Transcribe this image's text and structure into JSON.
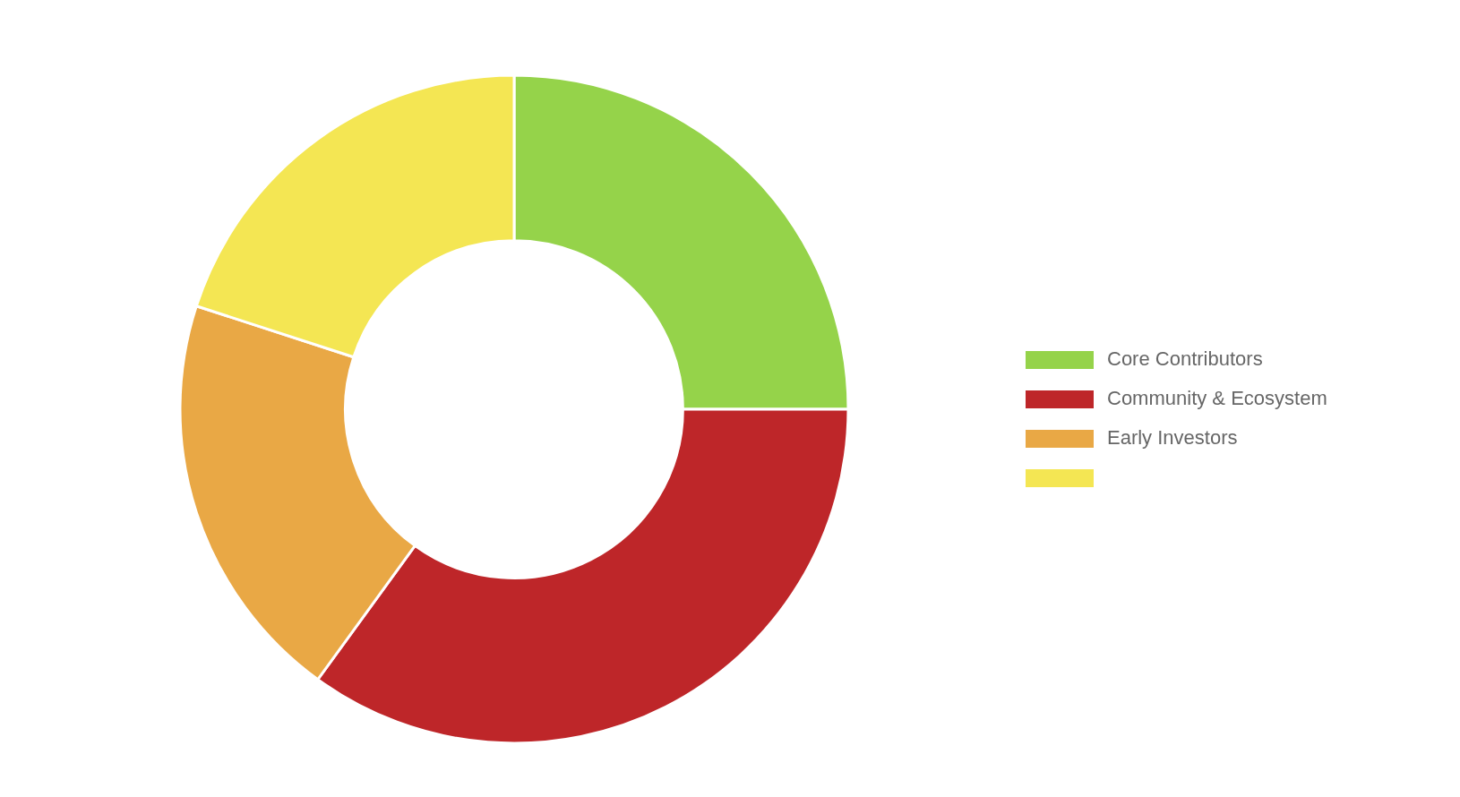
{
  "chart_data": {
    "type": "donut",
    "categories": [
      "Core Contributors",
      "Community & Ecosystem",
      "Early Investors",
      null
    ],
    "values": [
      25,
      35,
      20,
      20
    ],
    "colors": [
      "#95d34a",
      "#be2629",
      "#e9a845",
      "#f4e653"
    ],
    "legend": "right"
  }
}
